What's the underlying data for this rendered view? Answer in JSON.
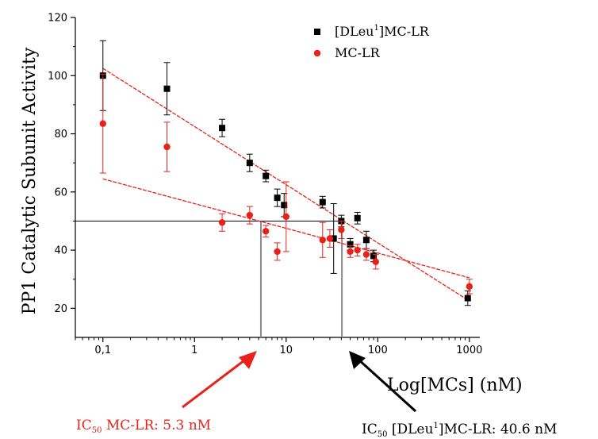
{
  "chart_data": {
    "type": "scatter",
    "ylabel": "PP1 Catalytic Subunit Activity",
    "xlabel": "Log[MCs] (nM)",
    "x_scale": "log",
    "xlim": [
      0.05,
      1300
    ],
    "ylim": [
      10,
      120
    ],
    "x_ticks": [
      {
        "value": 0.1,
        "label": "0,1"
      },
      {
        "value": 1,
        "label": "1"
      },
      {
        "value": 10,
        "label": "10"
      },
      {
        "value": 100,
        "label": "100"
      },
      {
        "value": 1000,
        "label": "1000"
      }
    ],
    "y_ticks": [
      20,
      40,
      60,
      80,
      100,
      120
    ],
    "grid": false,
    "legend_position": "top-right",
    "series": [
      {
        "name": "[DLeu1]MC-LR",
        "marker": "square",
        "color": "#000000",
        "points": [
          {
            "x": 0.1,
            "y": 100,
            "err": 12
          },
          {
            "x": 0.5,
            "y": 95.5,
            "err": 9
          },
          {
            "x": 2,
            "y": 82,
            "err": 3
          },
          {
            "x": 4,
            "y": 70,
            "err": 3
          },
          {
            "x": 6,
            "y": 65.5,
            "err": 2
          },
          {
            "x": 8,
            "y": 58,
            "err": 3
          },
          {
            "x": 9.5,
            "y": 55.5,
            "err": 4
          },
          {
            "x": 25,
            "y": 56.5,
            "err": 2
          },
          {
            "x": 33,
            "y": 44,
            "err": 12
          },
          {
            "x": 40,
            "y": 50,
            "err": 2
          },
          {
            "x": 50,
            "y": 42,
            "err": 2
          },
          {
            "x": 60,
            "y": 51,
            "err": 2
          },
          {
            "x": 75,
            "y": 43.5,
            "err": 3
          },
          {
            "x": 90,
            "y": 38,
            "err": 2
          },
          {
            "x": 960,
            "y": 23.5,
            "err": 2.5
          }
        ],
        "fit": {
          "x1": 0.1,
          "y1": 102.5,
          "x2": 1000,
          "y2": 22.5
        }
      },
      {
        "name": "MC-LR",
        "marker": "circle",
        "color": "#e8221a",
        "points": [
          {
            "x": 0.1,
            "y": 83.5,
            "err": 17
          },
          {
            "x": 0.5,
            "y": 75.5,
            "err": 8.5
          },
          {
            "x": 2,
            "y": 49.5,
            "err": 3
          },
          {
            "x": 4,
            "y": 52,
            "err": 3
          },
          {
            "x": 6,
            "y": 46.5,
            "err": 2
          },
          {
            "x": 8,
            "y": 39.5,
            "err": 3
          },
          {
            "x": 10,
            "y": 51.5,
            "err": 12
          },
          {
            "x": 25,
            "y": 43.5,
            "err": 6
          },
          {
            "x": 30,
            "y": 44,
            "err": 3
          },
          {
            "x": 40,
            "y": 47,
            "err": 3
          },
          {
            "x": 50,
            "y": 39.5,
            "err": 2
          },
          {
            "x": 60,
            "y": 40,
            "err": 2
          },
          {
            "x": 75,
            "y": 38.5,
            "err": 2
          },
          {
            "x": 95,
            "y": 36,
            "err": 2.5
          },
          {
            "x": 1000,
            "y": 27.5,
            "err": 2.5
          }
        ],
        "fit": {
          "x1": 0.1,
          "y1": 64.5,
          "x2": 1000,
          "y2": 30.5
        }
      }
    ],
    "ic50_reference": {
      "y": 50,
      "x_mc_lr": 5.3,
      "x_dleu": 40.6
    },
    "annotations": {
      "mc_lr": {
        "prefix": "IC",
        "sub": "50",
        "text": " MC-LR: 5.3 nM"
      },
      "dleu": {
        "prefix": "IC",
        "sub": "50",
        "text_a": " [DLeu",
        "sup": "1",
        "text_b": "]MC-LR: 40.6 nM"
      }
    }
  },
  "legend": {
    "dleu": {
      "text_a": "[DLeu",
      "sup": "1",
      "text_b": "]MC-LR"
    },
    "mc_lr": {
      "text": "MC-LR"
    }
  },
  "colors": {
    "red": "#e8221a",
    "black": "#000000",
    "fit_red": "#e8221a"
  }
}
